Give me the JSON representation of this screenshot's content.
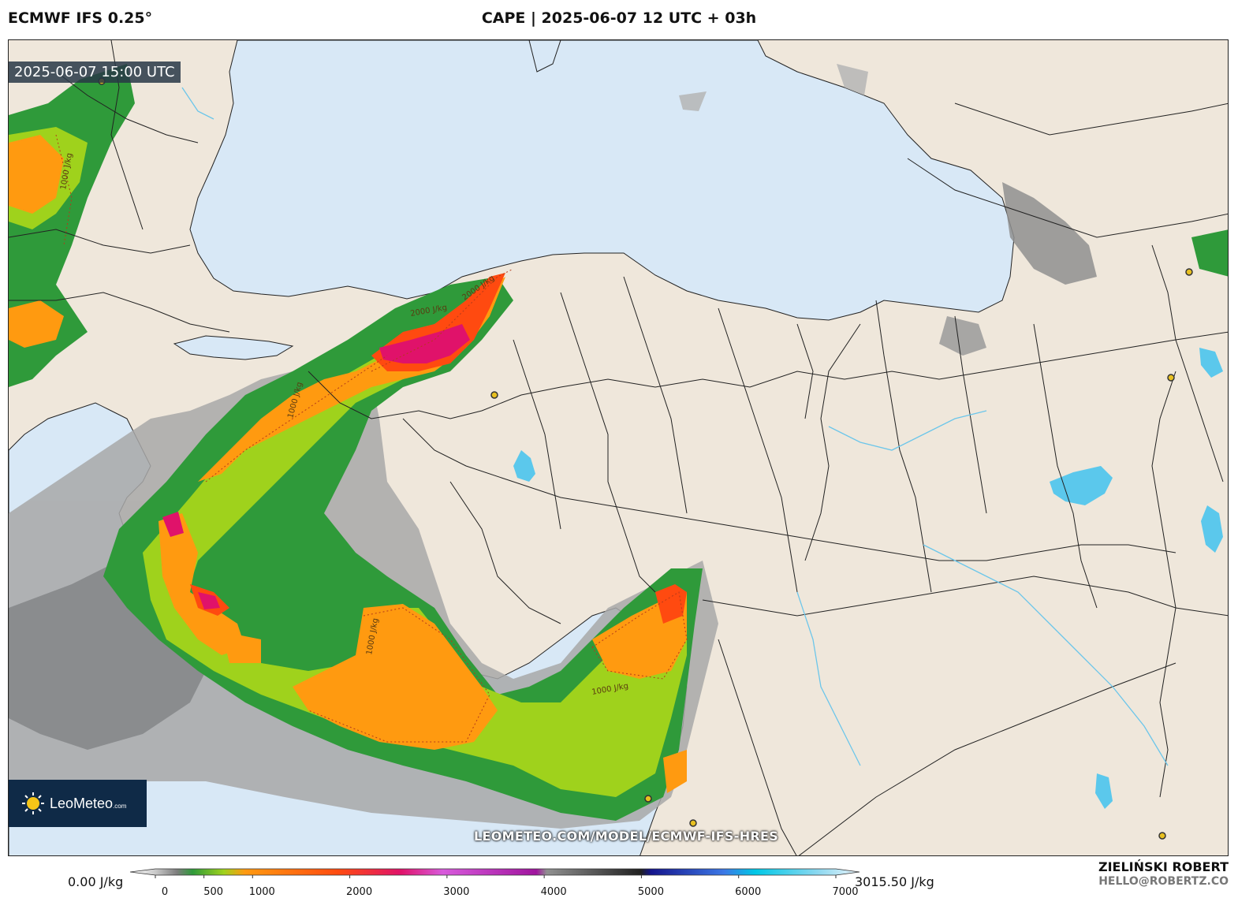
{
  "header": {
    "model": "ECMWF IFS 0.25°",
    "title": "CAPE | 2025-06-07 12 UTC + 03h"
  },
  "map": {
    "valid_time": "2025-06-07 15:00 UTC",
    "contour_labels": [
      "1000 J/kg",
      "2000 J/kg",
      "2000 J/kg",
      "1000 J/kg",
      "1000 J/kg",
      "1000 J/kg"
    ],
    "source_url": "LEOMETEO.COM/MODEL/ECMWF-IFS-HRES",
    "logo": {
      "name": "LeoMeteo",
      "suffix": ".com",
      "icon": "sun-icon"
    },
    "colors": {
      "sea": "#d8e8f6",
      "land": "#efe7db",
      "lake": "#5bc8ec",
      "border": "#222222"
    }
  },
  "legend": {
    "min_label": "0.00 J/kg",
    "max_label": "3015.50 J/kg",
    "min_value": 0,
    "max_value": 7000,
    "ticks": [
      "0",
      "500",
      "1000",
      "2000",
      "3000",
      "4000",
      "5000",
      "6000",
      "7000"
    ],
    "tick_values": [
      0,
      500,
      1000,
      2000,
      3000,
      4000,
      5000,
      6000,
      7000
    ],
    "stops": [
      {
        "value": 0,
        "color": "#ffffff"
      },
      {
        "value": 250,
        "color": "#c8c8c8"
      },
      {
        "value": 450,
        "color": "#7d7d7d"
      },
      {
        "value": 600,
        "color": "#2f9a3a"
      },
      {
        "value": 900,
        "color": "#9fd21c"
      },
      {
        "value": 1100,
        "color": "#ff9a10"
      },
      {
        "value": 2000,
        "color": "#ff4a10"
      },
      {
        "value": 2600,
        "color": "#e0126a"
      },
      {
        "value": 3000,
        "color": "#d85adc"
      },
      {
        "value": 3900,
        "color": "#a0149e"
      },
      {
        "value": 4000,
        "color": "#909090"
      },
      {
        "value": 4900,
        "color": "#202020"
      },
      {
        "value": 5000,
        "color": "#14148c"
      },
      {
        "value": 5700,
        "color": "#3c78e6"
      },
      {
        "value": 6000,
        "color": "#00c8e6"
      },
      {
        "value": 6600,
        "color": "#8cd8f0"
      },
      {
        "value": 7000,
        "color": "#eaf4fa"
      }
    ]
  },
  "author": {
    "name": "ZIELIŃSKI ROBERT",
    "email": "HELLO@ROBERTZ.CO"
  }
}
